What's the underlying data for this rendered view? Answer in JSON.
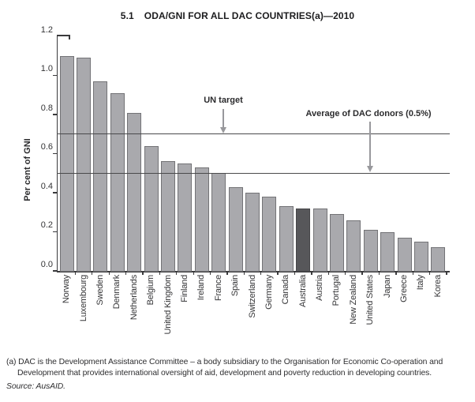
{
  "title": {
    "number": "5.1",
    "text": "ODA/GNI FOR ALL DAC COUNTRIES(a)—2010"
  },
  "chart_data": {
    "type": "bar",
    "title": "5.1 ODA/GNI FOR ALL DAC COUNTRIES(a)—2010",
    "xlabel": "",
    "ylabel": "Per cent of GNI",
    "ylim": [
      0,
      1.2
    ],
    "yticks": [
      0.0,
      0.2,
      0.4,
      0.6,
      0.8,
      1.0,
      1.2
    ],
    "ytick_labels": [
      "0.0",
      "0.2",
      "0.4",
      "0.6",
      "0.8",
      "1.0",
      "1.2"
    ],
    "grid": false,
    "legend": "none",
    "categories": [
      "Norway",
      "Luxembourg",
      "Sweden",
      "Denmark",
      "Netherlands",
      "Belgium",
      "United Kingdom",
      "Finland",
      "Ireland",
      "France",
      "Spain",
      "Switzerland",
      "Germany",
      "Canada",
      "Australia",
      "Austria",
      "Portugal",
      "New Zealand",
      "United States",
      "Japan",
      "Greece",
      "Italy",
      "Korea"
    ],
    "values": [
      1.1,
      1.09,
      0.97,
      0.91,
      0.81,
      0.64,
      0.56,
      0.55,
      0.53,
      0.5,
      0.43,
      0.4,
      0.38,
      0.33,
      0.32,
      0.32,
      0.29,
      0.26,
      0.21,
      0.2,
      0.17,
      0.15,
      0.12
    ],
    "highlight_index": 14,
    "highlight_category": "Australia",
    "reference_lines": [
      {
        "label": "UN target",
        "value": 0.7
      },
      {
        "label": "Average of DAC donors (0.5%)",
        "value": 0.5
      }
    ]
  },
  "footnote": {
    "line1": "(a) DAC is the Development Assistance Committee – a body subsidiary to the Organisation for Economic Co-operation and",
    "line2": "Development that provides international oversight of aid, development and poverty reduction in developing countries.",
    "source": "Source: AusAID."
  },
  "colors": {
    "bar_fill": "#a9a9ad",
    "bar_border": "#737376",
    "highlight_fill": "#57575a",
    "reference_line": "#4a4a4c",
    "arrow": "#98989c",
    "axis": "#3a3a3c",
    "text": "#2b2b2d"
  }
}
